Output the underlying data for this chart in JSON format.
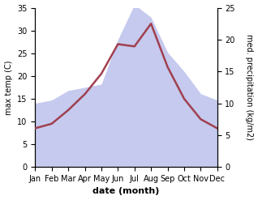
{
  "months": [
    "Jan",
    "Feb",
    "Mar",
    "Apr",
    "May",
    "Jun",
    "Jul",
    "Aug",
    "Sep",
    "Oct",
    "Nov",
    "Dec"
  ],
  "temp": [
    8.5,
    9.5,
    12.5,
    16.0,
    20.5,
    27.0,
    26.5,
    31.5,
    22.0,
    15.0,
    10.5,
    8.5
  ],
  "precip": [
    10.0,
    10.5,
    12.0,
    12.5,
    13.0,
    20.0,
    25.5,
    23.5,
    18.0,
    15.0,
    11.5,
    10.5
  ],
  "temp_color": "#a04050",
  "precip_fill_color": "#c5caee",
  "temp_ylim": [
    0,
    35
  ],
  "precip_ylim": [
    0,
    25
  ],
  "xlabel": "date (month)",
  "ylabel_left": "max temp (C)",
  "ylabel_right": "med. precipitation (kg/m2)",
  "tick_fontsize": 7,
  "label_fontsize": 8
}
